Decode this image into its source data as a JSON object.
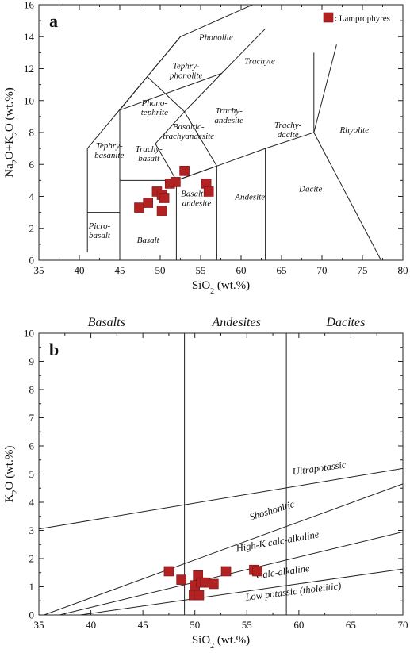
{
  "chart_data": [
    {
      "type": "scatter",
      "panel_label": "a",
      "xlabel": "SiO",
      "xlabel_sub": "2",
      "xlabel_tail": " (wt.%)",
      "ylabel_parts": [
        "Na",
        "2",
        "O+K",
        "2",
        "O (wt.%)"
      ],
      "xlim": [
        35,
        80
      ],
      "ylim": [
        0,
        16
      ],
      "xticks": [
        35,
        40,
        45,
        50,
        55,
        60,
        65,
        70,
        75,
        80
      ],
      "xtick_labels": [
        "35",
        "40",
        "45",
        "50",
        "55",
        "60",
        "65",
        "70",
        "75",
        "80"
      ],
      "yticks": [
        0,
        2,
        4,
        6,
        8,
        10,
        12,
        14,
        16
      ],
      "ytick_labels": [
        "0",
        "2",
        "4",
        "6",
        "8",
        "10",
        "12",
        "14",
        "16"
      ],
      "grid": false,
      "legend": {
        "label": ": Lamprophyres",
        "color": "#b22222",
        "placement": "top-right"
      },
      "series": [
        {
          "name": ": Lamprophyres",
          "color": "#b22222",
          "x": [
            47.4,
            48.5,
            49.6,
            50.2,
            50.5,
            51.2,
            51.9,
            53.0,
            55.7,
            56.0,
            50.2
          ],
          "y": [
            3.3,
            3.6,
            4.3,
            4.1,
            3.9,
            4.8,
            4.9,
            5.6,
            4.8,
            4.3,
            3.1
          ]
        }
      ],
      "field_boundaries": [
        [
          [
            41,
            0.5
          ],
          [
            41,
            7
          ],
          [
            52.5,
            14
          ],
          [
            69,
            17.7
          ]
        ],
        [
          [
            41,
            3
          ],
          [
            45,
            3
          ]
        ],
        [
          [
            45,
            0
          ],
          [
            45,
            5
          ],
          [
            52,
            5
          ]
        ],
        [
          [
            45,
            5
          ],
          [
            45,
            9.4
          ],
          [
            57.6,
            11.7
          ],
          [
            63,
            14.5
          ]
        ],
        [
          [
            52,
            0
          ],
          [
            52,
            5
          ],
          [
            57,
            5.9
          ],
          [
            63,
            7
          ],
          [
            69,
            8
          ],
          [
            71.8,
            13.5
          ]
        ],
        [
          [
            57,
            0
          ],
          [
            57,
            5.9
          ]
        ],
        [
          [
            63,
            0
          ],
          [
            63,
            7
          ]
        ],
        [
          [
            49.4,
            7.3
          ],
          [
            52,
            5
          ],
          [
            57,
            5.9
          ]
        ],
        [
          [
            49.4,
            7.3
          ],
          [
            53,
            9.3
          ],
          [
            57,
            5.9
          ]
        ],
        [
          [
            53,
            9.3
          ],
          [
            57.6,
            11.7
          ]
        ],
        [
          [
            48.4,
            11.5
          ],
          [
            53,
            9.3
          ]
        ],
        [
          [
            52.5,
            14
          ],
          [
            48.4,
            11.5
          ],
          [
            45,
            9.4
          ]
        ],
        [
          [
            69,
            8
          ],
          [
            77.3,
            0
          ]
        ],
        [
          [
            69,
            8
          ],
          [
            69,
            13
          ]
        ]
      ],
      "field_labels": [
        {
          "lines": [
            "Phonolite"
          ],
          "x": 56.9,
          "y": 13.8
        },
        {
          "lines": [
            "Tephry-",
            "phonolite"
          ],
          "x": 53.2,
          "y": 12.0
        },
        {
          "lines": [
            "Trachyte"
          ],
          "x": 62.3,
          "y": 12.3
        },
        {
          "lines": [
            "Phono-",
            "tephrite"
          ],
          "x": 49.3,
          "y": 9.7
        },
        {
          "lines": [
            "Trachy-",
            "andesite"
          ],
          "x": 58.5,
          "y": 9.2
        },
        {
          "lines": [
            "Tephry-",
            "basanite"
          ],
          "x": 43.7,
          "y": 7.0
        },
        {
          "lines": [
            "Basaltic-",
            "trachyandesite"
          ],
          "x": 53.5,
          "y": 8.2
        },
        {
          "lines": [
            "Trachy-",
            "dacite"
          ],
          "x": 65.8,
          "y": 8.3
        },
        {
          "lines": [
            "Rhyolite"
          ],
          "x": 74.0,
          "y": 8.0
        },
        {
          "lines": [
            "Trachy-",
            "basalt"
          ],
          "x": 48.6,
          "y": 6.8
        },
        {
          "lines": [
            "Andesite"
          ],
          "x": 61.1,
          "y": 3.8
        },
        {
          "lines": [
            "Dacite"
          ],
          "x": 68.6,
          "y": 4.3
        },
        {
          "lines": [
            "Basaltic-",
            "andesite"
          ],
          "x": 54.5,
          "y": 4.0
        },
        {
          "lines": [
            "Picro-",
            "basalt"
          ],
          "x": 42.5,
          "y": 2.0
        },
        {
          "lines": [
            "Basalt"
          ],
          "x": 48.5,
          "y": 1.1
        }
      ]
    },
    {
      "type": "scatter",
      "panel_label": "b",
      "xlabel": "SiO",
      "xlabel_sub": "2",
      "xlabel_tail": " (wt.%)",
      "ylabel_parts": [
        "K",
        "2",
        "O (wt.%)"
      ],
      "xlim": [
        35,
        70
      ],
      "ylim": [
        0,
        10
      ],
      "xticks": [
        35,
        40,
        45,
        50,
        55,
        60,
        65,
        70
      ],
      "xtick_labels": [
        "35",
        "40",
        "45",
        "50",
        "55",
        "60",
        "65",
        "70"
      ],
      "yticks": [
        0,
        1,
        2,
        3,
        4,
        5,
        6,
        7,
        8,
        9,
        10
      ],
      "ytick_labels": [
        "0",
        "1",
        "2",
        "3",
        "4",
        "5",
        "6",
        "7",
        "8",
        "9",
        "10"
      ],
      "grid": false,
      "top_labels": [
        {
          "text": "Basalts",
          "x": 41.5
        },
        {
          "text": "Andesites",
          "x": 54.0
        },
        {
          "text": "Dacites",
          "x": 64.5
        }
      ],
      "dividers": [
        49,
        58.8
      ],
      "series": [
        {
          "name": ": Lamprophyres",
          "color": "#b22222",
          "x": [
            47.5,
            48.7,
            49.9,
            50.0,
            50.3,
            50.4,
            50.6,
            51.0,
            51.8,
            53.0,
            55.7,
            56.0
          ],
          "y": [
            1.55,
            1.25,
            0.7,
            1.05,
            1.4,
            0.7,
            1.15,
            1.15,
            1.1,
            1.55,
            1.6,
            1.55
          ]
        }
      ],
      "field_boundaries": [
        [
          [
            35,
            3.05
          ],
          [
            70,
            5.2
          ]
        ],
        [
          [
            35.5,
            0
          ],
          [
            70,
            4.65
          ]
        ],
        [
          [
            37,
            0
          ],
          [
            70,
            2.95
          ]
        ],
        [
          [
            39,
            0
          ],
          [
            70,
            1.63
          ]
        ]
      ],
      "field_labels": [
        {
          "text": "Ultrapotassic",
          "x": 62.0,
          "y": 5.1,
          "rot": -8
        },
        {
          "text": "Shoshonitic",
          "x": 57.5,
          "y": 3.6,
          "rot": -17
        },
        {
          "text": "High-K calc-alkaline",
          "x": 58.0,
          "y": 2.5,
          "rot": -10
        },
        {
          "text": "Calc-alkaline",
          "x": 58.5,
          "y": 1.42,
          "rot": -8
        },
        {
          "text": "Low potassic (tholeiitic)",
          "x": 59.5,
          "y": 0.72,
          "rot": -7
        }
      ]
    }
  ]
}
